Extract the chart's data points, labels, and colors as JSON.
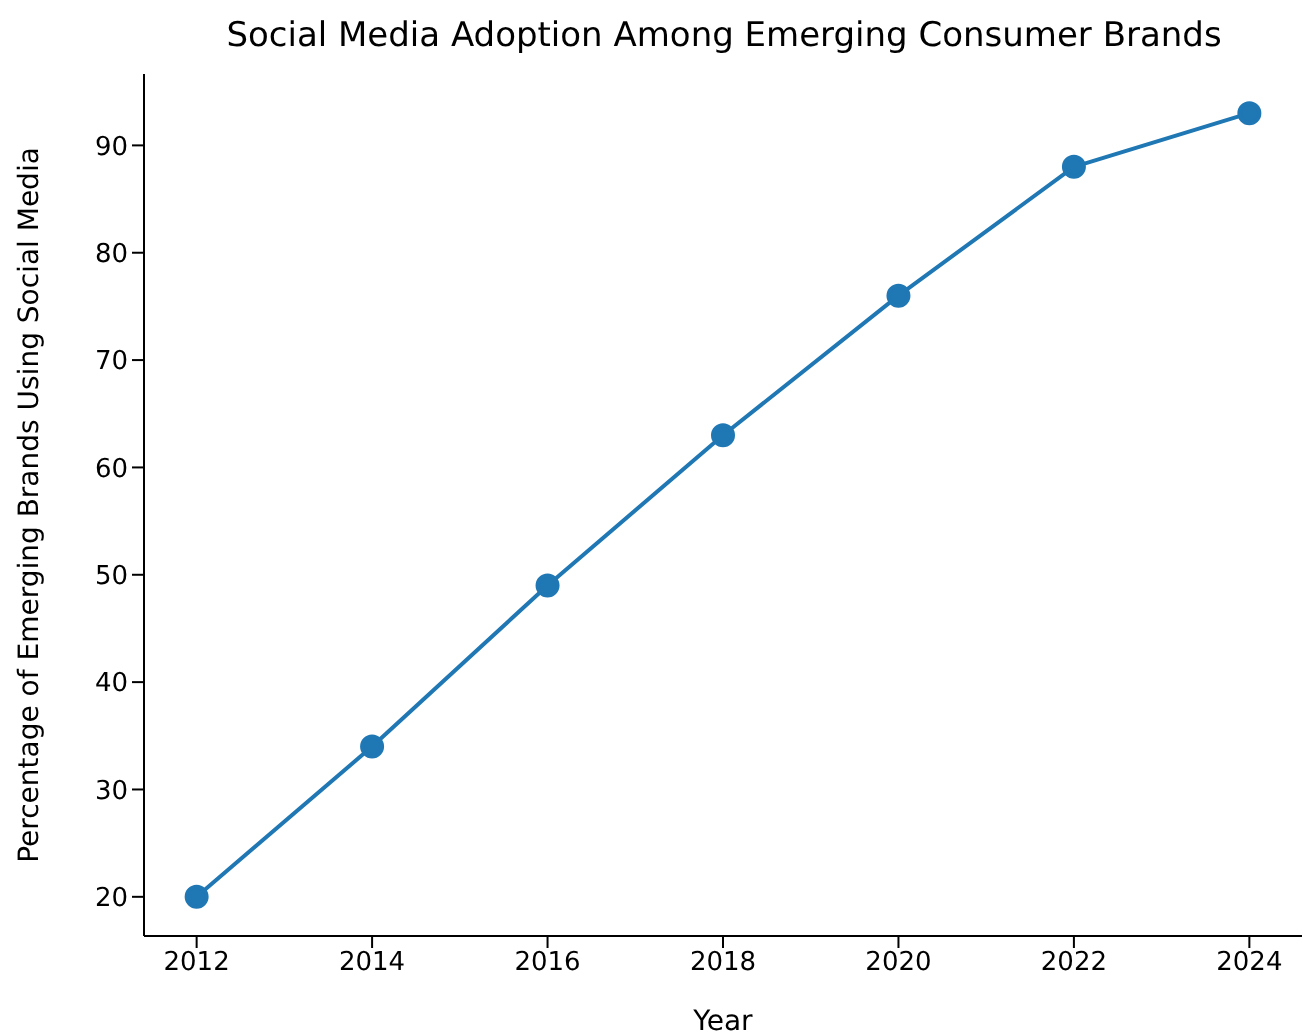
{
  "chart_data": {
    "type": "line",
    "title": "Social Media Adoption Among Emerging Consumer Brands",
    "xlabel": "Year",
    "ylabel": "Percentage of Emerging Brands Using Social Media",
    "x": [
      2012,
      2014,
      2016,
      2018,
      2020,
      2022,
      2024
    ],
    "series": [
      {
        "color": "#1f77b4",
        "values": [
          20,
          34,
          49,
          63,
          76,
          88,
          93
        ]
      }
    ],
    "xlim": [
      2011.4,
      2024.6
    ],
    "xticks": [
      2012,
      2014,
      2016,
      2018,
      2020,
      2022,
      2024
    ],
    "ylim": [
      16.35,
      96.65
    ],
    "yticks": [
      20,
      30,
      40,
      50,
      60,
      70,
      80,
      90
    ],
    "grid": false,
    "legend": false,
    "marker": "circle",
    "line_style": "solid"
  }
}
